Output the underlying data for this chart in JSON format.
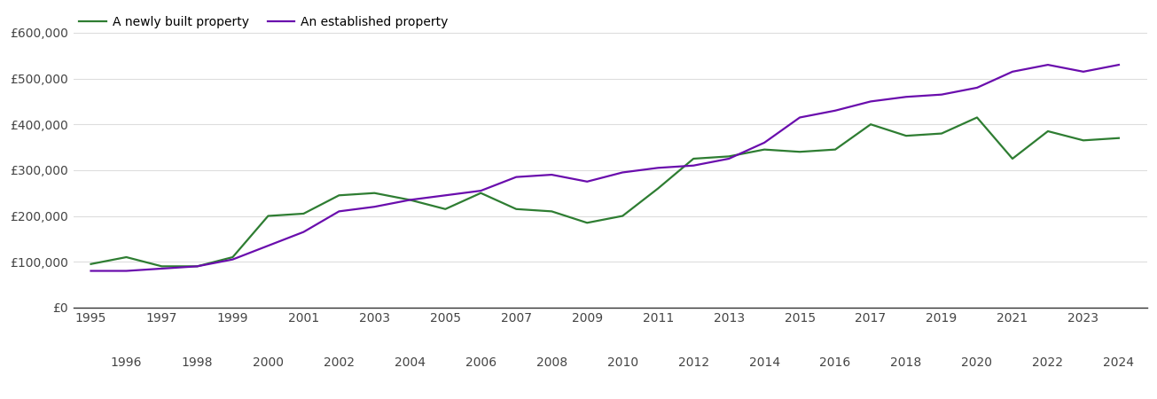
{
  "legend_new": "A newly built property",
  "legend_est": "An established property",
  "color_new": "#2e7d32",
  "color_est": "#6a0dad",
  "years_new": [
    1995,
    1996,
    1997,
    1998,
    1999,
    2000,
    2001,
    2002,
    2003,
    2004,
    2005,
    2006,
    2007,
    2008,
    2009,
    2010,
    2011,
    2012,
    2013,
    2014,
    2015,
    2016,
    2017,
    2018,
    2019,
    2020,
    2021,
    2022,
    2023,
    2024
  ],
  "values_new": [
    95000,
    110000,
    90000,
    90000,
    110000,
    200000,
    205000,
    245000,
    250000,
    235000,
    215000,
    250000,
    215000,
    210000,
    185000,
    200000,
    260000,
    325000,
    330000,
    345000,
    340000,
    345000,
    400000,
    375000,
    380000,
    415000,
    325000,
    385000,
    365000,
    370000
  ],
  "years_est": [
    1995,
    1996,
    1997,
    1998,
    1999,
    2000,
    2001,
    2002,
    2003,
    2004,
    2005,
    2006,
    2007,
    2008,
    2009,
    2010,
    2011,
    2012,
    2013,
    2014,
    2015,
    2016,
    2017,
    2018,
    2019,
    2020,
    2021,
    2022,
    2023,
    2024
  ],
  "values_est": [
    80000,
    80000,
    85000,
    90000,
    105000,
    135000,
    165000,
    210000,
    220000,
    235000,
    245000,
    255000,
    285000,
    290000,
    275000,
    295000,
    305000,
    310000,
    325000,
    360000,
    415000,
    430000,
    450000,
    460000,
    465000,
    480000,
    515000,
    530000,
    515000,
    530000
  ],
  "ylim": [
    0,
    650000
  ],
  "yticks": [
    0,
    100000,
    200000,
    300000,
    400000,
    500000,
    600000
  ],
  "ytick_labels": [
    "£0",
    "£100,000",
    "£200,000",
    "£300,000",
    "£400,000",
    "£500,000",
    "£600,000"
  ],
  "xlim": [
    1994.5,
    2024.8
  ],
  "xticks_row1": [
    1995,
    1997,
    1999,
    2001,
    2003,
    2005,
    2007,
    2009,
    2011,
    2013,
    2015,
    2017,
    2019,
    2021,
    2023
  ],
  "xticks_row2": [
    1996,
    1998,
    2000,
    2002,
    2004,
    2006,
    2008,
    2010,
    2012,
    2014,
    2016,
    2018,
    2020,
    2022,
    2024
  ],
  "bg_color": "#ffffff",
  "grid_color": "#dddddd",
  "text_color": "#444444",
  "linewidth": 1.6
}
